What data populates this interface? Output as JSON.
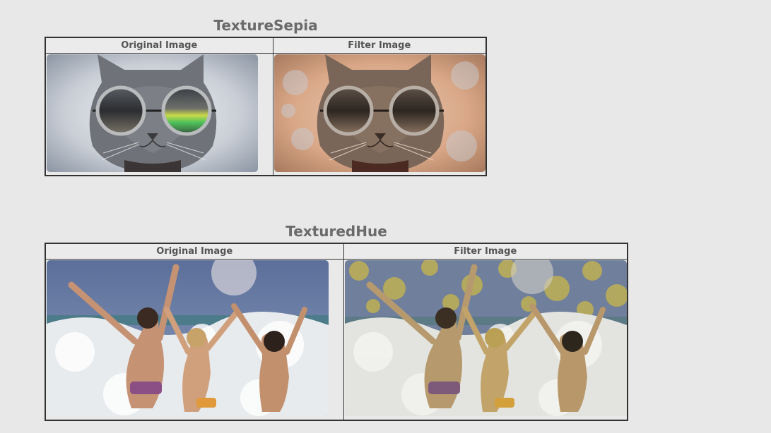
{
  "sections": [
    {
      "title": "TextureSepia",
      "col_original": "Original Image",
      "col_filter": "Filter Image",
      "images": {
        "original": "cat-with-sunglasses-photo",
        "filter": "cat-with-sunglasses-sepia-textured-photo"
      }
    },
    {
      "title": "TexturedHue",
      "col_original": "Original Image",
      "col_filter": "Filter Image",
      "images": {
        "original": "women-in-ocean-waves-photo",
        "filter": "women-in-ocean-waves-hue-textured-photo"
      }
    }
  ]
}
